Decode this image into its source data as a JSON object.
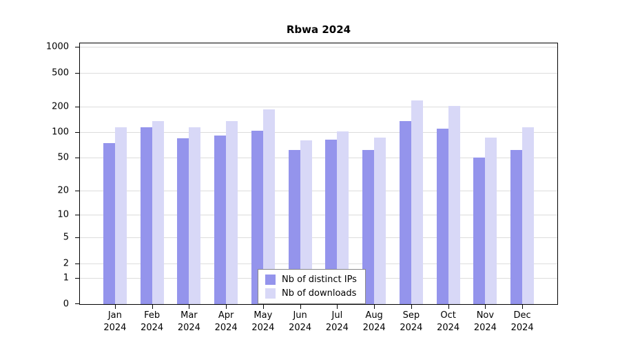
{
  "title": "Rbwa 2024",
  "legend": {
    "items": [
      {
        "label": "Nb of distinct IPs",
        "color": "#9494ec"
      },
      {
        "label": "Nb of downloads",
        "color": "#d8d8f7"
      }
    ]
  },
  "chart_data": {
    "type": "bar",
    "title": "Rbwa 2024",
    "categories": [
      "Jan 2024",
      "Feb 2024",
      "Mar 2024",
      "Apr 2024",
      "May 2024",
      "Jun 2024",
      "Jul 2024",
      "Aug 2024",
      "Sep 2024",
      "Oct 2024",
      "Nov 2024",
      "Dec 2024"
    ],
    "series": [
      {
        "name": "Nb of distinct IPs",
        "color": "#9494ec",
        "values": [
          75,
          115,
          85,
          92,
          105,
          62,
          82,
          62,
          135,
          110,
          50,
          62
        ]
      },
      {
        "name": "Nb of downloads",
        "color": "#d8d8f7",
        "values": [
          115,
          135,
          115,
          135,
          185,
          80,
          103,
          87,
          235,
          205,
          87,
          115
        ]
      }
    ],
    "yscale": "log",
    "yticks": [
      0,
      1,
      2,
      5,
      10,
      20,
      50,
      100,
      200,
      500,
      1000
    ],
    "ylim": [
      0,
      1100
    ],
    "xlabel": "",
    "ylabel": "",
    "grid": true,
    "legend_position": "bottom-center"
  }
}
